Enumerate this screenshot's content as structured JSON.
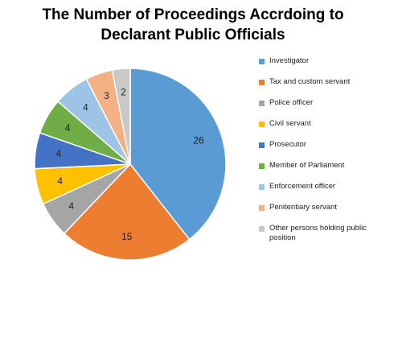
{
  "chart_data": {
    "type": "pie",
    "title_lines": [
      "The Number of Proceedings Accrdoing to",
      "Declarant Public Officials"
    ],
    "categories": [
      "Investigator",
      "Tax and custom servant",
      "Police officer",
      "Civil servant",
      "Prosecutor",
      "Member of Parliament",
      "Enforcement officer",
      "Penitentiary servant",
      "Other persons holding public position"
    ],
    "values": [
      26,
      15,
      4,
      4,
      4,
      4,
      4,
      3,
      2
    ],
    "colors": [
      "#5B9BD5",
      "#ED7D31",
      "#A5A5A5",
      "#FFC000",
      "#4472C4",
      "#70AD47",
      "#9DC3E6",
      "#F4B183",
      "#C9C9C9"
    ],
    "legend_position": "right",
    "data_labels": true
  }
}
